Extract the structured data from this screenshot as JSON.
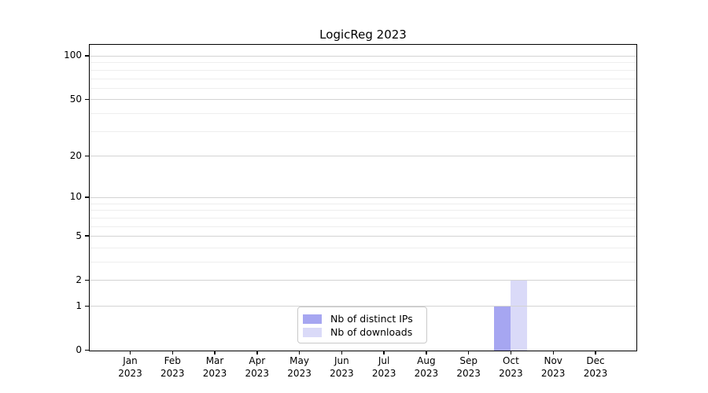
{
  "chart_data": {
    "type": "bar",
    "title": "LogicReg 2023",
    "categories": [
      "Jan",
      "Feb",
      "Mar",
      "Apr",
      "May",
      "Jun",
      "Jul",
      "Aug",
      "Sep",
      "Oct",
      "Nov",
      "Dec"
    ],
    "category_year": "2023",
    "series": [
      {
        "name": "Nb of distinct IPs",
        "color": "#a6a6f1",
        "values": [
          0,
          0,
          0,
          0,
          0,
          0,
          0,
          0,
          0,
          1,
          0,
          0
        ]
      },
      {
        "name": "Nb of downloads",
        "color": "#dadaf8",
        "values": [
          0,
          0,
          0,
          0,
          0,
          0,
          0,
          0,
          0,
          2,
          0,
          0
        ]
      }
    ],
    "yscale": "log1p",
    "ylim": [
      0,
      120
    ],
    "y_major_ticks": [
      0,
      1,
      2,
      5,
      10,
      20,
      50,
      100
    ],
    "y_minor_ticks": [
      3,
      4,
      6,
      7,
      8,
      9,
      30,
      40,
      60,
      70,
      80,
      90
    ],
    "grid": true,
    "legend_position": "lower center",
    "xlabel": "",
    "ylabel": ""
  },
  "colors": {
    "grid_major": "#d3d3d3",
    "grid_minor": "#eeeeee",
    "spine": "#000000",
    "text": "#000000",
    "legend_border": "#c9c9c9"
  }
}
